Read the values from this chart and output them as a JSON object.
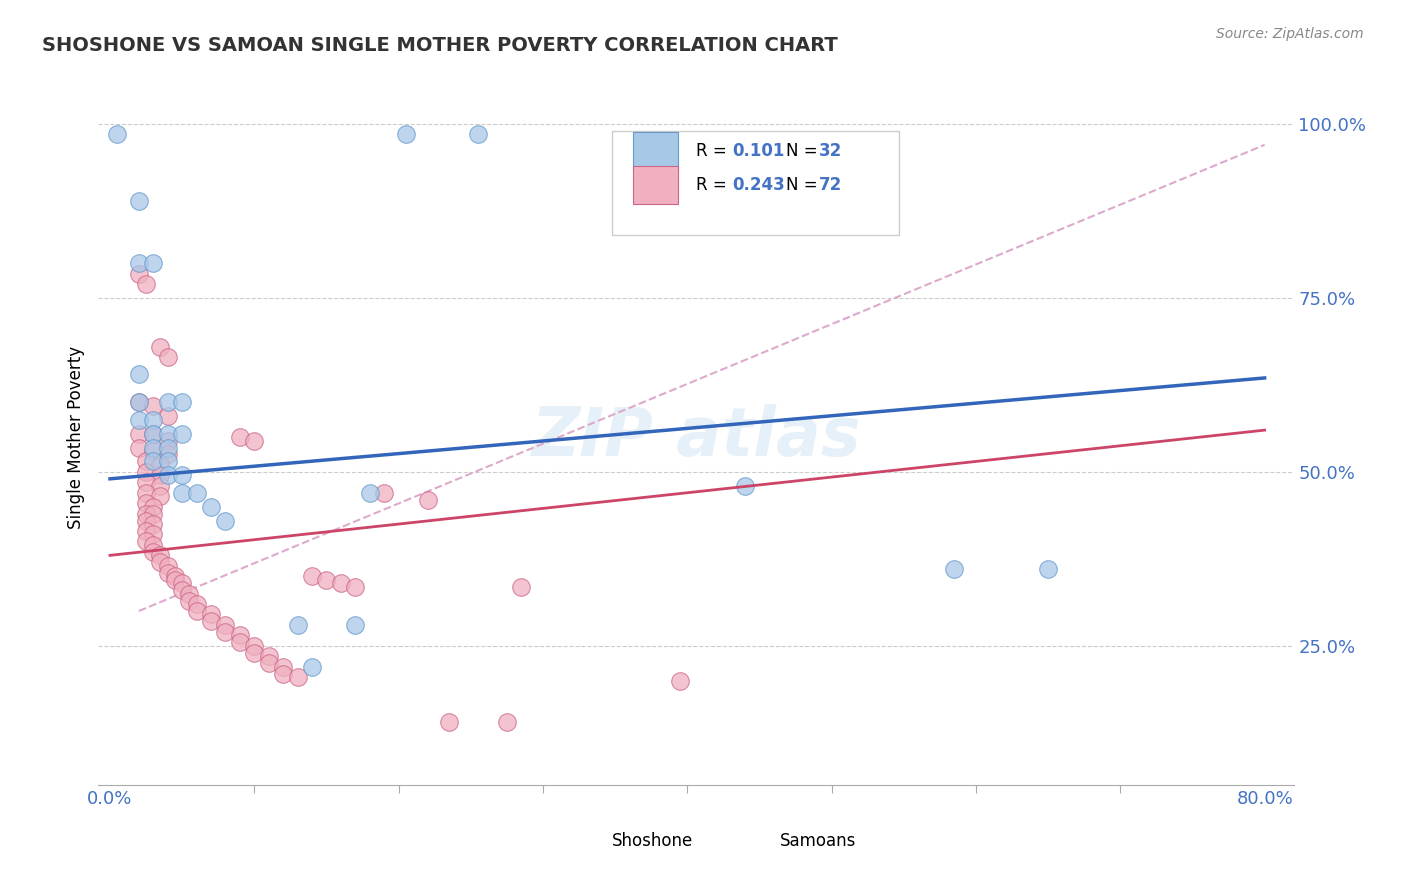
{
  "title": "SHOSHONE VS SAMOAN SINGLE MOTHER POVERTY CORRELATION CHART",
  "source": "Source: ZipAtlas.com",
  "ylabel": "Single Mother Poverty",
  "watermark": "ZIPatlas",
  "shoshone_color": "#a8c8e8",
  "shoshone_edge_color": "#6699cc",
  "samoan_color": "#f0b0c0",
  "samoan_edge_color": "#cc6688",
  "shoshone_line_color": "#3366bb",
  "samoan_line_color": "#cc4466",
  "dashed_line_color": "#ddaacc",
  "background_color": "#ffffff",
  "legend_box_color": "#ffffff",
  "legend_border_color": "#cccccc",
  "title_color": "#333333",
  "axis_label_color": "#4472c4",
  "shoshone_line": [
    0.0,
    0.49,
    0.8,
    0.635
  ],
  "samoan_line": [
    0.0,
    0.38,
    0.8,
    0.56
  ],
  "dashed_line": [
    0.02,
    0.3,
    0.8,
    0.97
  ],
  "shoshone_points": [
    [
      0.005,
      0.985
    ],
    [
      0.205,
      0.985
    ],
    [
      0.255,
      0.985
    ],
    [
      0.02,
      0.89
    ],
    [
      0.02,
      0.8
    ],
    [
      0.03,
      0.8
    ],
    [
      0.02,
      0.64
    ],
    [
      0.02,
      0.6
    ],
    [
      0.04,
      0.6
    ],
    [
      0.05,
      0.6
    ],
    [
      0.02,
      0.575
    ],
    [
      0.03,
      0.575
    ],
    [
      0.03,
      0.555
    ],
    [
      0.04,
      0.555
    ],
    [
      0.05,
      0.555
    ],
    [
      0.03,
      0.535
    ],
    [
      0.04,
      0.535
    ],
    [
      0.03,
      0.515
    ],
    [
      0.04,
      0.515
    ],
    [
      0.04,
      0.495
    ],
    [
      0.05,
      0.495
    ],
    [
      0.05,
      0.47
    ],
    [
      0.06,
      0.47
    ],
    [
      0.07,
      0.45
    ],
    [
      0.08,
      0.43
    ],
    [
      0.18,
      0.47
    ],
    [
      0.44,
      0.48
    ],
    [
      0.13,
      0.28
    ],
    [
      0.17,
      0.28
    ],
    [
      0.585,
      0.36
    ],
    [
      0.65,
      0.36
    ],
    [
      0.14,
      0.22
    ]
  ],
  "samoan_points": [
    [
      0.02,
      0.785
    ],
    [
      0.025,
      0.77
    ],
    [
      0.035,
      0.68
    ],
    [
      0.04,
      0.665
    ],
    [
      0.02,
      0.6
    ],
    [
      0.03,
      0.595
    ],
    [
      0.04,
      0.58
    ],
    [
      0.02,
      0.555
    ],
    [
      0.03,
      0.555
    ],
    [
      0.04,
      0.545
    ],
    [
      0.02,
      0.535
    ],
    [
      0.03,
      0.53
    ],
    [
      0.04,
      0.525
    ],
    [
      0.025,
      0.515
    ],
    [
      0.035,
      0.51
    ],
    [
      0.025,
      0.5
    ],
    [
      0.035,
      0.495
    ],
    [
      0.025,
      0.485
    ],
    [
      0.035,
      0.48
    ],
    [
      0.025,
      0.47
    ],
    [
      0.035,
      0.465
    ],
    [
      0.025,
      0.455
    ],
    [
      0.03,
      0.45
    ],
    [
      0.025,
      0.44
    ],
    [
      0.03,
      0.44
    ],
    [
      0.025,
      0.43
    ],
    [
      0.03,
      0.425
    ],
    [
      0.025,
      0.415
    ],
    [
      0.03,
      0.41
    ],
    [
      0.025,
      0.4
    ],
    [
      0.03,
      0.395
    ],
    [
      0.03,
      0.385
    ],
    [
      0.035,
      0.38
    ],
    [
      0.035,
      0.37
    ],
    [
      0.04,
      0.365
    ],
    [
      0.04,
      0.355
    ],
    [
      0.045,
      0.35
    ],
    [
      0.045,
      0.345
    ],
    [
      0.05,
      0.34
    ],
    [
      0.05,
      0.33
    ],
    [
      0.055,
      0.325
    ],
    [
      0.055,
      0.315
    ],
    [
      0.06,
      0.31
    ],
    [
      0.06,
      0.3
    ],
    [
      0.07,
      0.295
    ],
    [
      0.07,
      0.285
    ],
    [
      0.08,
      0.28
    ],
    [
      0.08,
      0.27
    ],
    [
      0.09,
      0.265
    ],
    [
      0.09,
      0.255
    ],
    [
      0.1,
      0.25
    ],
    [
      0.1,
      0.24
    ],
    [
      0.11,
      0.235
    ],
    [
      0.11,
      0.225
    ],
    [
      0.12,
      0.22
    ],
    [
      0.12,
      0.21
    ],
    [
      0.13,
      0.205
    ],
    [
      0.14,
      0.35
    ],
    [
      0.15,
      0.345
    ],
    [
      0.16,
      0.34
    ],
    [
      0.17,
      0.335
    ],
    [
      0.19,
      0.47
    ],
    [
      0.22,
      0.46
    ],
    [
      0.09,
      0.55
    ],
    [
      0.1,
      0.545
    ],
    [
      0.285,
      0.335
    ],
    [
      0.235,
      0.14
    ],
    [
      0.275,
      0.14
    ],
    [
      0.395,
      0.2
    ]
  ]
}
